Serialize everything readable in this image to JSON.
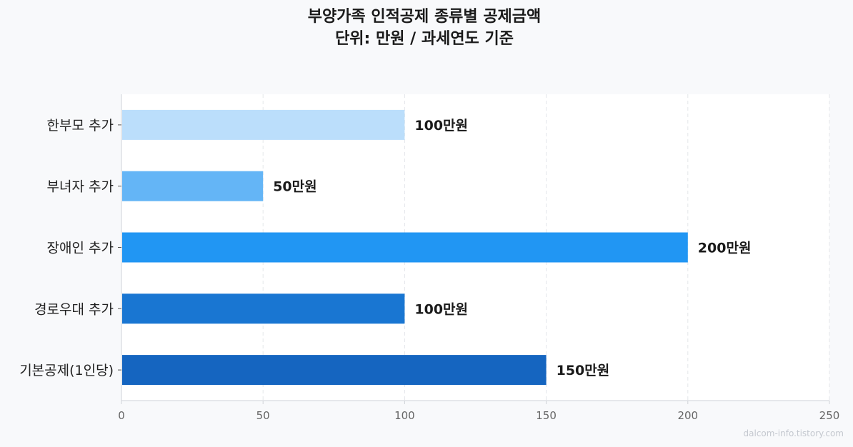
{
  "chart_data": {
    "type": "bar",
    "orientation": "horizontal",
    "title": "부양가족 인적공제 종류별 공제금액",
    "subtitle": "단위: 만원 / 과세연도 기준",
    "categories": [
      "한부모 추가",
      "부녀자 추가",
      "장애인 추가",
      "경로우대 추가",
      "기본공제(1인당)"
    ],
    "values": [
      100,
      50,
      200,
      100,
      150
    ],
    "data_labels": [
      "100만원",
      "50만원",
      "200만원",
      "100만원",
      "150만원"
    ],
    "bar_colors": [
      "#bbdefb",
      "#64b5f6",
      "#2196f3",
      "#1976d2",
      "#1565c0"
    ],
    "xlim": [
      0,
      250
    ],
    "xticks": [
      0,
      50,
      100,
      150,
      200,
      250
    ],
    "xlabel": "",
    "ylabel": "",
    "grid": "vertical-dashed",
    "legend": "none"
  },
  "watermark": "dalcom-info.tistory.com"
}
